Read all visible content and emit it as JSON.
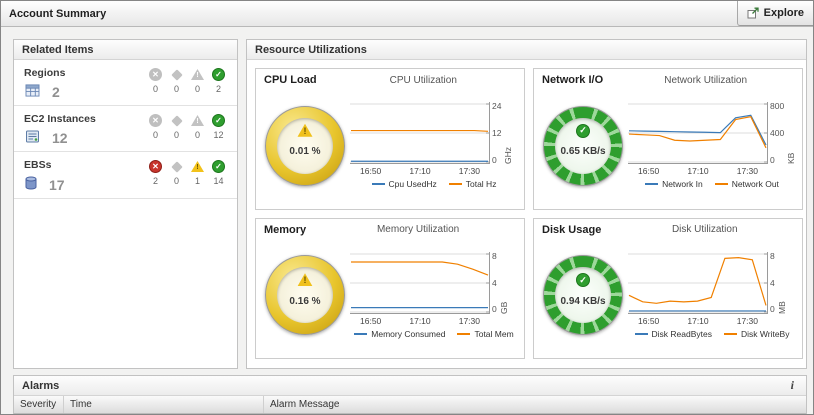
{
  "header": {
    "title": "Account Summary",
    "explore_label": "Explore"
  },
  "related_items": {
    "title": "Related Items",
    "rows": [
      {
        "name": "Regions",
        "count": "2",
        "statuses": {
          "fatal": "0",
          "critical": "0",
          "warning": "0",
          "normal": "2"
        }
      },
      {
        "name": "EC2 Instances",
        "count": "12",
        "statuses": {
          "fatal": "0",
          "critical": "0",
          "warning": "0",
          "normal": "12"
        }
      },
      {
        "name": "EBSs",
        "count": "17",
        "statuses": {
          "fatal": "2",
          "critical": "0",
          "warning": "1",
          "normal": "14"
        }
      }
    ]
  },
  "resource": {
    "title": "Resource Utilizations",
    "panels": [
      {
        "name": "CPU Load",
        "gauge_value": "0.01 %",
        "state": "warning"
      },
      {
        "name": "Network I/O",
        "gauge_value": "0.65 KB/s",
        "state": "normal"
      },
      {
        "name": "Memory",
        "gauge_value": "0.16 %",
        "state": "warning"
      },
      {
        "name": "Disk Usage",
        "gauge_value": "0.94 KB/s",
        "state": "normal"
      }
    ]
  },
  "alarms": {
    "title": "Alarms",
    "info_label": "i",
    "columns": [
      "Severity",
      "Time",
      "Alarm Message"
    ]
  },
  "glyphs": {
    "check": "✓",
    "cross": "✕",
    "warning_mark": "!"
  },
  "colors": {
    "series_blue": "#3a7ab8",
    "series_orange": "#f08000",
    "status_green": "#2f9e2f",
    "status_red": "#c8352c",
    "status_yellow": "#f2c21a",
    "gauge_gold": "#e8c52c"
  },
  "chart_data": [
    {
      "type": "line",
      "title": "CPU Utilization",
      "ylabel": "GHz",
      "ylim": [
        0,
        24
      ],
      "yticks": [
        0,
        12,
        24
      ],
      "xticks": [
        "16:50",
        "17:10",
        "17:30"
      ],
      "series": [
        {
          "name": "Cpu UsedHz",
          "color": "#3a7ab8",
          "values": [
            0.3,
            0.3,
            0.3,
            0.3,
            0.3,
            0.3,
            0.3,
            0.3,
            0.3,
            0.3,
            0.3
          ]
        },
        {
          "name": "Total Hz",
          "color": "#f08000",
          "values": [
            13,
            13,
            13,
            13,
            13,
            13,
            13,
            13,
            13,
            13,
            12.7
          ]
        }
      ]
    },
    {
      "type": "line",
      "title": "Network Utilization",
      "ylabel": "KB",
      "ylim": [
        0,
        800
      ],
      "yticks": [
        0,
        400,
        800
      ],
      "xticks": [
        "16:50",
        "17:10",
        "17:30"
      ],
      "series": [
        {
          "name": "Network In",
          "color": "#3a7ab8",
          "values": [
            430,
            426,
            422,
            418,
            414,
            410,
            405,
            610,
            645,
            235
          ]
        },
        {
          "name": "Network Out",
          "color": "#f08000",
          "values": [
            385,
            375,
            365,
            300,
            290,
            300,
            310,
            585,
            625,
            195
          ]
        }
      ]
    },
    {
      "type": "line",
      "title": "Memory Utilization",
      "ylabel": "GB",
      "ylim": [
        0,
        8
      ],
      "yticks": [
        0,
        4,
        8
      ],
      "xticks": [
        "16:50",
        "17:10",
        "17:30"
      ],
      "series": [
        {
          "name": "Memory Consumed",
          "color": "#3a7ab8",
          "values": [
            0.6,
            0.6,
            0.6,
            0.6,
            0.6,
            0.6,
            0.6,
            0.6,
            0.6,
            0.6
          ]
        },
        {
          "name": "Total Mem",
          "color": "#f08000",
          "values": [
            6.9,
            6.9,
            6.9,
            6.9,
            6.9,
            6.9,
            6.9,
            6.6,
            5.9,
            5.1
          ]
        }
      ]
    },
    {
      "type": "line",
      "title": "Disk Utilization",
      "ylabel": "MB",
      "ylim": [
        0,
        8
      ],
      "yticks": [
        0,
        4,
        8
      ],
      "xticks": [
        "16:50",
        "17:10",
        "17:30"
      ],
      "series": [
        {
          "name": "Disk ReadBytes",
          "color": "#3a7ab8",
          "values": [
            0.15,
            0.15,
            0.15,
            0.15,
            0.15,
            0.15,
            0.15,
            0.15,
            0.15,
            0.15,
            0.15
          ]
        },
        {
          "name": "Disk WriteBy",
          "color": "#f08000",
          "values": [
            2.3,
            1.4,
            1.2,
            1.5,
            1.4,
            1.5,
            2.0,
            7.4,
            7.5,
            7.2,
            0.9
          ]
        }
      ]
    }
  ]
}
